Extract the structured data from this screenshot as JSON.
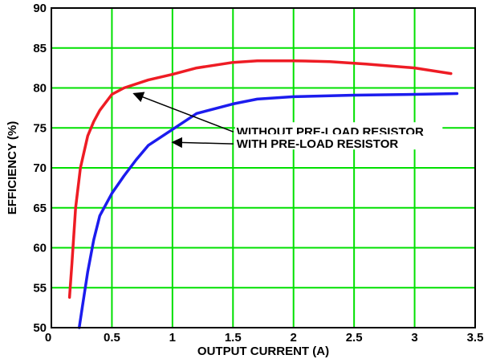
{
  "chart_data": {
    "type": "line",
    "xlabel": "OUTPUT CURRENT (A)",
    "ylabel": "EFFICIENCY (%)",
    "xlim": [
      0,
      3.5
    ],
    "ylim": [
      50,
      90
    ],
    "grid": true,
    "grid_color": "#00e000",
    "x_ticks": [
      "0",
      "0.5",
      "1",
      "1.5",
      "2",
      "2.5",
      "3",
      "3.5"
    ],
    "y_ticks": [
      "50",
      "55",
      "60",
      "65",
      "70",
      "75",
      "80",
      "85",
      "90"
    ],
    "series": [
      {
        "color": "#ee1c24",
        "x": [
          0.15,
          0.17,
          0.2,
          0.24,
          0.3,
          0.35,
          0.4,
          0.5,
          0.6,
          0.8,
          1.0,
          1.2,
          1.5,
          1.7,
          2.0,
          2.3,
          2.6,
          3.0,
          3.3
        ],
        "y": [
          53.8,
          58,
          65,
          70,
          74,
          75.8,
          77.2,
          79.2,
          80,
          81,
          81.7,
          82.5,
          83.2,
          83.4,
          83.4,
          83.3,
          83,
          82.5,
          81.8
        ]
      },
      {
        "color": "#1c1cee",
        "x": [
          0.23,
          0.26,
          0.3,
          0.35,
          0.4,
          0.5,
          0.6,
          0.7,
          0.8,
          1.0,
          1.2,
          1.5,
          1.7,
          2.0,
          2.5,
          3.0,
          3.35
        ],
        "y": [
          50,
          53,
          57,
          61,
          64,
          66.8,
          69,
          71,
          72.8,
          74.8,
          76.8,
          78,
          78.6,
          78.9,
          79.1,
          79.2,
          79.3
        ]
      }
    ],
    "annotations": [
      {
        "text": "WITHOUT PRE-LOAD RESISTOR",
        "target": [
          0.68,
          79.3
        ],
        "anchor": [
          1.53,
          74.5
        ]
      },
      {
        "text": "WITH PRE-LOAD RESISTOR",
        "target": [
          1.0,
          73.2
        ],
        "anchor": [
          1.53,
          73.0
        ]
      }
    ]
  }
}
